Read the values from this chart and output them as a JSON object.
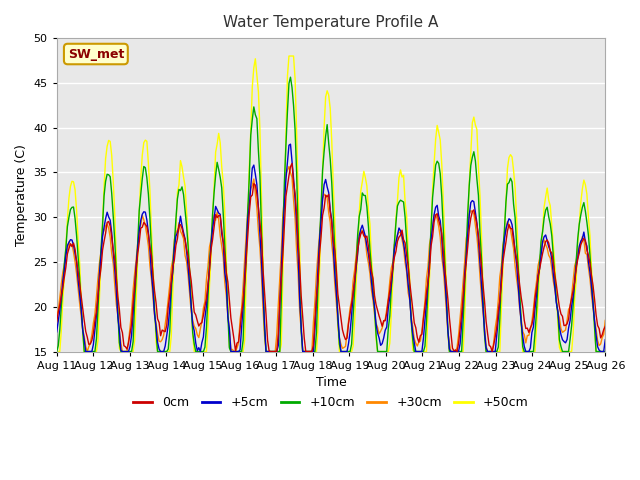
{
  "title": "Water Temperature Profile A",
  "xlabel": "Time",
  "ylabel": "Temperature (C)",
  "ylim": [
    15,
    50
  ],
  "background_color": "#ffffff",
  "plot_bg_color": "#e8e8e8",
  "grid_color": "#ffffff",
  "annotation_label": "SW_met",
  "annotation_color": "#8b0000",
  "annotation_bg": "#ffffcc",
  "annotation_border": "#cc9900",
  "series_colors": {
    "0cm": "#cc0000",
    "+5cm": "#0000cc",
    "+10cm": "#00aa00",
    "+30cm": "#ff8800",
    "+50cm": "#ffff00"
  },
  "legend_entries": [
    "0cm",
    "+5cm",
    "+10cm",
    "+30cm",
    "+50cm"
  ],
  "tick_labels": [
    "Aug 11",
    "Aug 12",
    "Aug 13",
    "Aug 14",
    "Aug 15",
    "Aug 16",
    "Aug 17",
    "Aug 18",
    "Aug 19",
    "Aug 20",
    "Aug 21",
    "Aug 22",
    "Aug 23",
    "Aug 24",
    "Aug 25",
    "Aug 26"
  ],
  "num_days": 15,
  "points_per_day": 24
}
